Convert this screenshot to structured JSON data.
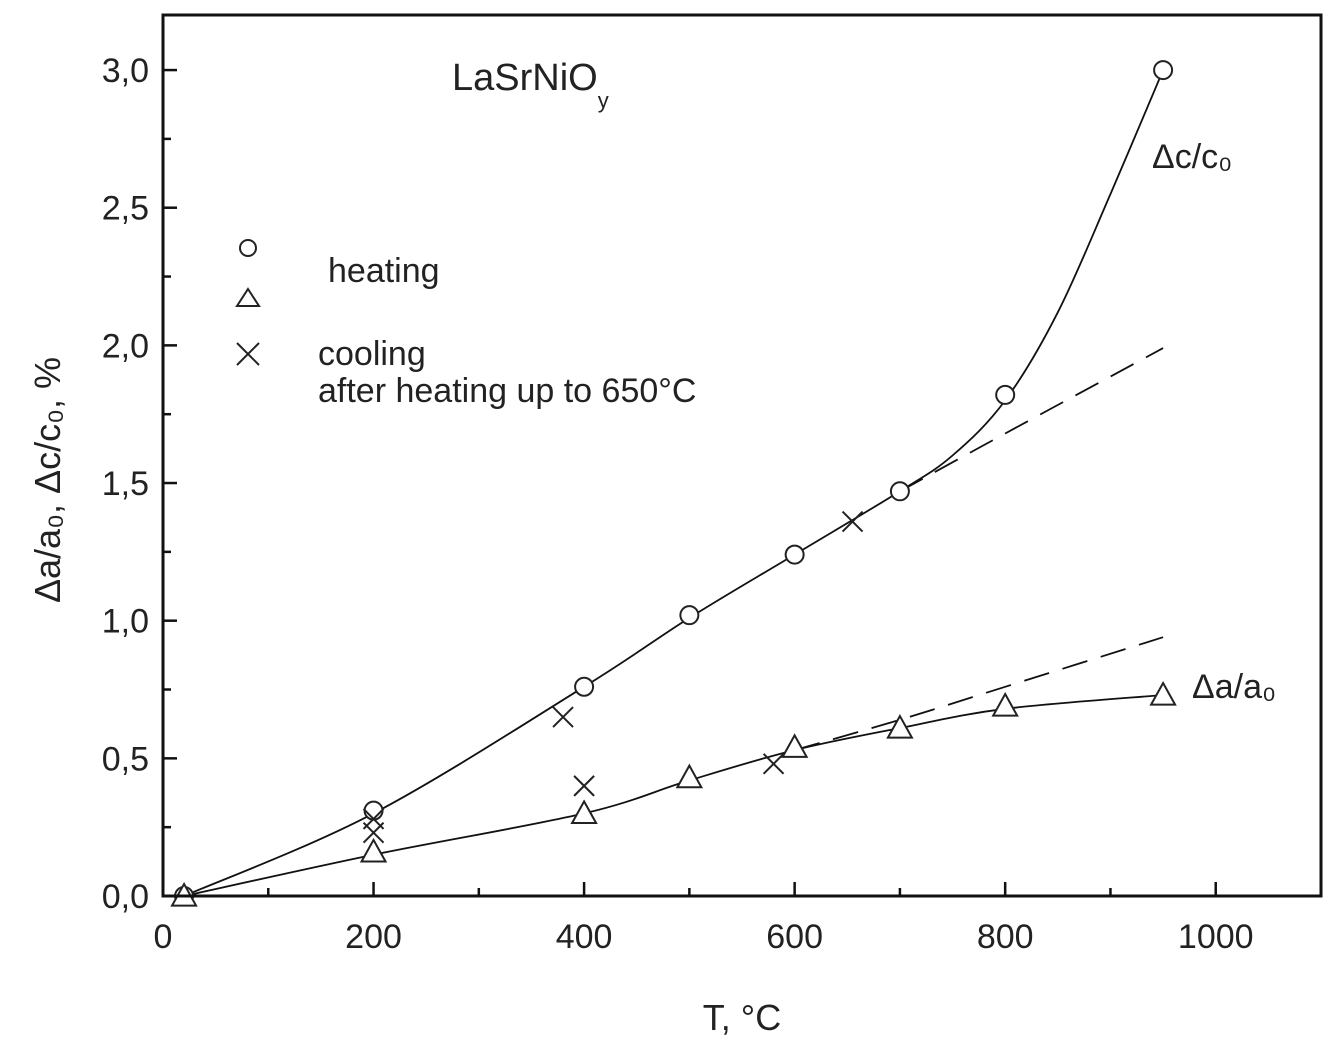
{
  "chart_data": {
    "type": "scatter",
    "title": "LaSrNiO",
    "title_subscript": "y",
    "xlabel": "T, °C",
    "ylabel": "Δa/a₀, Δc/c₀, %",
    "xlim": [
      0,
      1100
    ],
    "ylim": [
      0,
      3.2
    ],
    "x_ticks": [
      0,
      200,
      400,
      600,
      800,
      1000
    ],
    "x_tick_labels": [
      "0",
      "200",
      "400",
      "600",
      "800",
      "1000"
    ],
    "y_ticks": [
      0,
      0.5,
      1.0,
      1.5,
      2.0,
      2.5,
      3.0
    ],
    "y_tick_labels": [
      "0,0",
      "0,5",
      "1,0",
      "1,5",
      "2,0",
      "2,5",
      "3,0"
    ],
    "grid": false,
    "legend": {
      "placement": "top-left",
      "entries": [
        {
          "marker": "circle",
          "label": ""
        },
        {
          "marker": "triangle",
          "label": "heating"
        },
        {
          "marker": "cross",
          "label": "cooling"
        }
      ],
      "note": "after heating up to 650°C"
    },
    "series": [
      {
        "name": "Δc/c₀",
        "marker": "circle",
        "x": [
          20,
          200,
          400,
          500,
          600,
          700,
          800,
          950
        ],
        "y": [
          0.0,
          0.31,
          0.76,
          1.02,
          1.24,
          1.47,
          1.82,
          3.0
        ]
      },
      {
        "name": "Δa/a₀",
        "marker": "triangle",
        "x": [
          20,
          200,
          400,
          500,
          600,
          700,
          800,
          950
        ],
        "y": [
          0.0,
          0.16,
          0.3,
          0.43,
          0.54,
          0.61,
          0.69,
          0.73
        ]
      },
      {
        "name": "",
        "marker": "cross",
        "x": [
          200,
          200,
          380,
          400,
          580,
          655
        ],
        "y": [
          0.28,
          0.23,
          0.65,
          0.4,
          0.48,
          1.36
        ]
      }
    ],
    "fit_curves": [
      {
        "style": "solid",
        "x": [
          20,
          200,
          400,
          500,
          600,
          700,
          750,
          800,
          850,
          900,
          950
        ],
        "y": [
          0.0,
          0.3,
          0.76,
          1.01,
          1.24,
          1.47,
          1.6,
          1.8,
          2.12,
          2.55,
          3.0
        ]
      },
      {
        "style": "solid",
        "x": [
          20,
          200,
          400,
          500,
          600,
          700,
          800,
          950
        ],
        "y": [
          0.0,
          0.15,
          0.3,
          0.42,
          0.53,
          0.61,
          0.68,
          0.73
        ]
      },
      {
        "style": "dashed",
        "x": [
          700,
          800,
          950
        ],
        "y": [
          1.47,
          1.68,
          1.99
        ]
      },
      {
        "style": "dashed",
        "x": [
          600,
          700,
          800,
          950
        ],
        "y": [
          0.53,
          0.64,
          0.76,
          0.94
        ]
      }
    ]
  }
}
